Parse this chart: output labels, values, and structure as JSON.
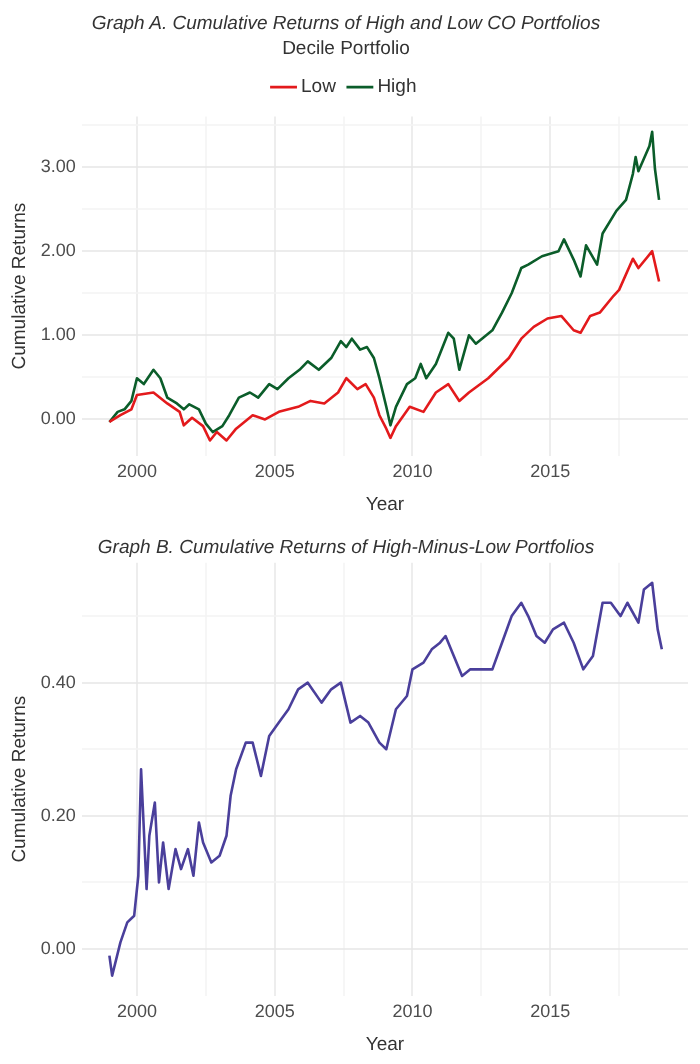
{
  "chart_data": [
    {
      "type": "line",
      "title": "Graph A. Cumulative Returns of High and Low CO Portfolios",
      "xlabel": "Year",
      "ylabel": "Cumulative Returns",
      "legend_title": "Decile Portfolio",
      "legend": "top",
      "grid": true,
      "marker": "none",
      "line_style": "solid",
      "xlim": [
        1998,
        2020
      ],
      "xticks": [
        2000,
        {
          "value": 2002.5,
          "label": null
        },
        2005,
        {
          "value": 2007.5,
          "label": null
        },
        2010,
        {
          "value": 2012.5,
          "label": null
        },
        2015,
        {
          "value": 2017.5,
          "label": null
        }
      ],
      "ylim": [
        -0.43,
        3.6
      ],
      "yticks": [
        {
          "value": 0,
          "label": "0.00"
        },
        {
          "value": 0.5,
          "label": null
        },
        {
          "value": 1,
          "label": "1.00"
        },
        {
          "value": 1.5,
          "label": null
        },
        {
          "value": 2,
          "label": "2.00"
        },
        {
          "value": 2.5,
          "label": null
        },
        {
          "value": 3,
          "label": "3.00"
        },
        {
          "value": 3.5,
          "label": null
        }
      ],
      "series": [
        {
          "name": "Low",
          "color": "#e31a1c",
          "x": [
            1999.0,
            1999.4,
            1999.8,
            2000.0,
            2000.6,
            2001.1,
            2001.55,
            2001.7,
            2002.0,
            2002.4,
            2002.65,
            2002.9,
            2003.25,
            2003.6,
            2004.2,
            2004.65,
            2005.15,
            2005.85,
            2006.3,
            2006.8,
            2007.3,
            2007.6,
            2008.0,
            2008.3,
            2008.6,
            2008.8,
            2009.05,
            2009.2,
            2009.4,
            2009.9,
            2010.4,
            2010.85,
            2011.3,
            2011.7,
            2012.05,
            2012.75,
            2013.5,
            2013.95,
            2014.4,
            2014.9,
            2015.4,
            2015.85,
            2016.1,
            2016.45,
            2016.8,
            2017.3,
            2017.5,
            2018.0,
            2018.2,
            2018.7,
            2018.95
          ],
          "values": [
            -0.03,
            0.05,
            0.12,
            0.29,
            0.32,
            0.19,
            0.09,
            -0.07,
            0.02,
            -0.08,
            -0.25,
            -0.15,
            -0.25,
            -0.11,
            0.05,
            0.0,
            0.09,
            0.15,
            0.22,
            0.19,
            0.32,
            0.49,
            0.36,
            0.42,
            0.26,
            0.05,
            -0.11,
            -0.22,
            -0.08,
            0.15,
            0.09,
            0.32,
            0.42,
            0.22,
            0.32,
            0.49,
            0.73,
            0.96,
            1.1,
            1.2,
            1.23,
            1.06,
            1.03,
            1.23,
            1.27,
            1.47,
            1.54,
            1.91,
            1.8,
            2.0,
            1.64
          ]
        },
        {
          "name": "High",
          "color": "#0b5d2a",
          "x": [
            1999.0,
            1999.3,
            1999.55,
            1999.8,
            2000.0,
            2000.25,
            2000.6,
            2000.85,
            2001.1,
            2001.45,
            2001.7,
            2001.9,
            2002.25,
            2002.5,
            2002.75,
            2003.1,
            2003.35,
            2003.7,
            2004.1,
            2004.4,
            2004.8,
            2005.1,
            2005.5,
            2005.9,
            2006.2,
            2006.6,
            2007.05,
            2007.4,
            2007.6,
            2007.8,
            2008.1,
            2008.35,
            2008.6,
            2008.8,
            2009.05,
            2009.2,
            2009.4,
            2009.8,
            2010.1,
            2010.3,
            2010.5,
            2010.85,
            2011.3,
            2011.5,
            2011.7,
            2012.05,
            2012.3,
            2012.9,
            2013.25,
            2013.6,
            2013.95,
            2014.2,
            2014.7,
            2015.3,
            2015.5,
            2015.85,
            2016.1,
            2016.3,
            2016.7,
            2016.9,
            2017.4,
            2017.75,
            2018.0,
            2018.1,
            2018.2,
            2018.6,
            2018.7,
            2018.8,
            2018.95
          ],
          "values": [
            -0.03,
            0.09,
            0.12,
            0.22,
            0.49,
            0.42,
            0.59,
            0.49,
            0.26,
            0.19,
            0.12,
            0.18,
            0.12,
            -0.05,
            -0.15,
            -0.08,
            0.05,
            0.26,
            0.32,
            0.26,
            0.42,
            0.36,
            0.49,
            0.59,
            0.69,
            0.59,
            0.73,
            0.93,
            0.86,
            0.96,
            0.83,
            0.86,
            0.73,
            0.49,
            0.15,
            -0.07,
            0.15,
            0.42,
            0.49,
            0.66,
            0.49,
            0.66,
            1.03,
            0.96,
            0.59,
            1.0,
            0.9,
            1.06,
            1.27,
            1.5,
            1.8,
            1.84,
            1.94,
            2.0,
            2.14,
            1.9,
            1.7,
            2.07,
            1.84,
            2.21,
            2.48,
            2.61,
            2.92,
            3.12,
            2.95,
            3.25,
            3.42,
            2.98,
            2.61
          ]
        }
      ]
    },
    {
      "type": "line",
      "title": "Graph B. Cumulative Returns of High-Minus-Low Portfolios",
      "xlabel": "Year",
      "ylabel": "Cumulative Returns",
      "grid": true,
      "marker": "none",
      "line_style": "solid",
      "xlim": [
        1998,
        2020
      ],
      "xticks": [
        2000,
        {
          "value": 2002.5,
          "label": null
        },
        2005,
        {
          "value": 2007.5,
          "label": null
        },
        2010,
        {
          "value": 2012.5,
          "label": null
        },
        2015,
        {
          "value": 2017.5,
          "label": null
        }
      ],
      "ylim": [
        -0.07,
        0.58
      ],
      "yticks": [
        {
          "value": 0,
          "label": "0.00"
        },
        {
          "value": 0.1,
          "label": null
        },
        {
          "value": 0.2,
          "label": "0.20"
        },
        {
          "value": 0.3,
          "label": null
        },
        {
          "value": 0.4,
          "label": "0.40"
        },
        {
          "value": 0.5,
          "label": null
        }
      ],
      "series": [
        {
          "color": "#4a3f9b",
          "x": [
            1999.0,
            1999.1,
            1999.4,
            1999.65,
            1999.9,
            2000.05,
            2000.15,
            2000.35,
            2000.45,
            2000.65,
            2000.8,
            2000.95,
            2001.15,
            2001.4,
            2001.6,
            2001.85,
            2002.05,
            2002.25,
            2002.4,
            2002.7,
            2003.0,
            2003.25,
            2003.4,
            2003.6,
            2003.95,
            2004.2,
            2004.5,
            2004.8,
            2005.15,
            2005.5,
            2005.85,
            2006.2,
            2006.7,
            2007.05,
            2007.4,
            2007.75,
            2008.1,
            2008.4,
            2008.8,
            2009.05,
            2009.4,
            2009.8,
            2010.0,
            2010.4,
            2010.7,
            2011.0,
            2011.2,
            2011.5,
            2011.8,
            2012.1,
            2012.5,
            2012.9,
            2013.25,
            2013.6,
            2013.95,
            2014.2,
            2014.5,
            2014.8,
            2015.1,
            2015.5,
            2015.85,
            2016.2,
            2016.55,
            2016.9,
            2017.2,
            2017.55,
            2017.8,
            2018.2,
            2018.4,
            2018.7,
            2018.9,
            2019.05
          ],
          "values": [
            -0.01,
            -0.04,
            0.01,
            0.04,
            0.05,
            0.11,
            0.27,
            0.09,
            0.17,
            0.22,
            0.1,
            0.16,
            0.09,
            0.15,
            0.12,
            0.15,
            0.11,
            0.19,
            0.16,
            0.13,
            0.14,
            0.17,
            0.23,
            0.27,
            0.31,
            0.31,
            0.26,
            0.32,
            0.34,
            0.36,
            0.39,
            0.4,
            0.37,
            0.39,
            0.4,
            0.34,
            0.35,
            0.34,
            0.31,
            0.3,
            0.36,
            0.38,
            0.42,
            0.43,
            0.45,
            0.46,
            0.47,
            0.44,
            0.41,
            0.42,
            0.42,
            0.42,
            0.46,
            0.5,
            0.52,
            0.5,
            0.47,
            0.46,
            0.48,
            0.49,
            0.46,
            0.42,
            0.44,
            0.52,
            0.52,
            0.5,
            0.52,
            0.49,
            0.54,
            0.55,
            0.48,
            0.45
          ]
        }
      ]
    }
  ]
}
